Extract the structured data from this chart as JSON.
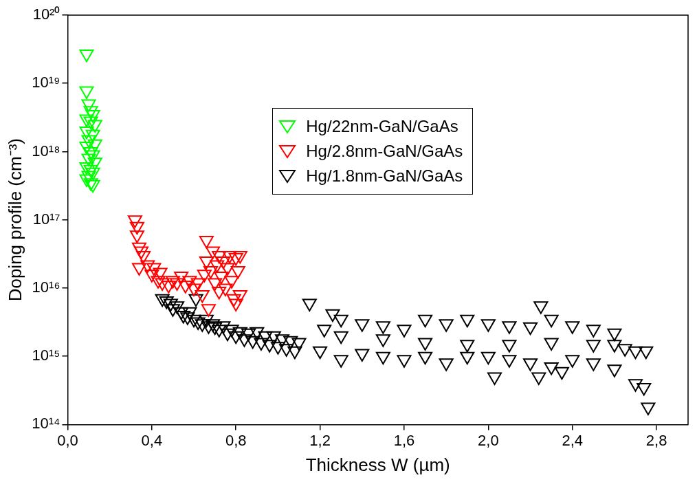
{
  "chart_data": {
    "type": "scatter",
    "xlabel": "Thickness W (µm)",
    "ylabel": "Doping profile (cm⁻³)",
    "xlim": [
      0,
      2.95
    ],
    "xticks": [
      {
        "value": 0,
        "label": "0,0"
      },
      {
        "value": 0.4,
        "label": "0,4"
      },
      {
        "value": 0.8,
        "label": "0,8"
      },
      {
        "value": 1.2,
        "label": "1,2"
      },
      {
        "value": 1.6,
        "label": "1,6"
      },
      {
        "value": 2.0,
        "label": "2,0"
      },
      {
        "value": 2.4,
        "label": "2,4"
      },
      {
        "value": 2.8,
        "label": "2,8"
      }
    ],
    "ylim": [
      100000000000000.0,
      1e+20
    ],
    "yticks": [
      {
        "value": 100000000000000.0,
        "label": "10¹⁴"
      },
      {
        "value": 1000000000000000.0,
        "label": "10¹⁵"
      },
      {
        "value": 1e+16,
        "label": "10¹⁶"
      },
      {
        "value": 1e+17,
        "label": "10¹⁷"
      },
      {
        "value": 1e+18,
        "label": "10¹⁸"
      },
      {
        "value": 1e+19,
        "label": "10¹⁹"
      },
      {
        "value": 1e+20,
        "label": "10²⁰"
      }
    ],
    "log": "y",
    "grid": false,
    "legend": "top right",
    "marker": "triangle",
    "series": [
      {
        "name": "Hg/22nm-GaN/GaAs",
        "color": "#00ff00",
        "x": [
          0.09,
          0.09,
          0.1,
          0.11,
          0.12,
          0.09,
          0.11,
          0.13,
          0.09,
          0.12,
          0.1,
          0.13,
          0.09,
          0.11,
          0.12,
          0.1,
          0.13,
          0.09,
          0.11,
          0.12,
          0.1,
          0.09,
          0.11,
          0.12
        ],
        "values": [
          2.7e+19,
          7.8e+18,
          5e+18,
          4e+18,
          3.5e+18,
          3e+18,
          2.8e+18,
          2.5e+18,
          2e+18,
          1.8e+18,
          1.5e+18,
          1.3e+18,
          1.2e+18,
          1e+18,
          9e+17,
          8e+17,
          7e+17,
          6e+17,
          5.5e+17,
          5e+17,
          4.5e+17,
          4e+17,
          3.5e+17,
          3.3e+17
        ]
      },
      {
        "name": "Hg/2.8nm-GaN/GaAs",
        "color": "#ff0000",
        "x": [
          0.32,
          0.33,
          0.33,
          0.34,
          0.35,
          0.34,
          0.36,
          0.38,
          0.4,
          0.41,
          0.43,
          0.44,
          0.45,
          0.48,
          0.5,
          0.52,
          0.54,
          0.56,
          0.58,
          0.6,
          0.62,
          0.64,
          0.65,
          0.66,
          0.66,
          0.67,
          0.68,
          0.69,
          0.7,
          0.71,
          0.72,
          0.72,
          0.73,
          0.74,
          0.75,
          0.76,
          0.77,
          0.78,
          0.79,
          0.8,
          0.81,
          0.82,
          0.82,
          0.8
        ],
        "values": [
          1e+17,
          8e+16,
          6e+16,
          4e+16,
          3.5e+16,
          2e+16,
          3e+16,
          2.2e+16,
          1.6e+16,
          2e+16,
          1.3e+16,
          1.7e+16,
          1.2e+16,
          1.1e+16,
          1.3e+16,
          1.2e+16,
          1.5e+16,
          1.1e+16,
          1.3e+16,
          1e+16,
          1.2e+16,
          8000000000000000.0,
          1.6e+16,
          5e+16,
          2.5e+16,
          5000000000000000.0,
          1.8e+16,
          3.5e+16,
          1.2e+16,
          2.2e+16,
          3e+16,
          9000000000000000.0,
          1.5e+16,
          2.5e+16,
          1e+16,
          2e+16,
          3e+16,
          1.3e+16,
          7000000000000000.0,
          2.8e+16,
          1.8e+16,
          8000000000000000.0,
          3e+16,
          6000000000000000.0
        ]
      },
      {
        "name": "Hg/1.8nm-GaN/GaAs",
        "color": "#000000",
        "x": [
          0.45,
          0.47,
          0.49,
          0.5,
          0.52,
          0.54,
          0.55,
          0.57,
          0.58,
          0.6,
          0.61,
          0.62,
          0.64,
          0.66,
          0.67,
          0.69,
          0.7,
          0.72,
          0.74,
          0.76,
          0.78,
          0.8,
          0.82,
          0.84,
          0.86,
          0.88,
          0.9,
          0.92,
          0.94,
          0.96,
          0.98,
          1.0,
          1.02,
          1.04,
          1.06,
          1.08,
          1.1,
          1.15,
          1.22,
          1.26,
          1.3,
          1.4,
          1.5,
          1.6,
          1.7,
          1.8,
          1.9,
          2.0,
          2.1,
          2.2,
          2.25,
          2.3,
          2.4,
          2.5,
          2.6,
          2.7,
          2.75,
          1.2,
          1.3,
          1.4,
          1.5,
          1.6,
          1.7,
          1.8,
          1.9,
          2.0,
          2.03,
          2.1,
          2.2,
          2.24,
          2.3,
          2.35,
          2.4,
          2.5,
          2.6,
          2.65,
          2.7,
          2.74,
          2.76,
          1.3,
          1.5,
          1.7,
          1.9,
          2.1,
          2.3,
          2.5,
          2.6
        ],
        "values": [
          7000000000000000.0,
          6500000000000000.0,
          6000000000000000.0,
          5000000000000000.0,
          5500000000000000.0,
          4500000000000000.0,
          4000000000000000.0,
          3800000000000000.0,
          4500000000000000.0,
          3500000000000000.0,
          7000000000000000.0,
          3200000000000000.0,
          3000000000000000.0,
          3500000000000000.0,
          2800000000000000.0,
          3000000000000000.0,
          2700000000000000.0,
          2500000000000000.0,
          2800000000000000.0,
          2200000000000000.0,
          2500000000000000.0,
          2000000000000000.0,
          2300000000000000.0,
          1800000000000000.0,
          2200000000000000.0,
          1700000000000000.0,
          2300000000000000.0,
          1600000000000000.0,
          2000000000000000.0,
          1500000000000000.0,
          2000000000000000.0,
          1400000000000000.0,
          1800000000000000.0,
          1300000000000000.0,
          1700000000000000.0,
          1200000000000000.0,
          1600000000000000.0,
          6000000000000000.0,
          2500000000000000.0,
          4200000000000000.0,
          3500000000000000.0,
          3000000000000000.0,
          2800000000000000.0,
          2500000000000000.0,
          3500000000000000.0,
          3000000000000000.0,
          3500000000000000.0,
          3000000000000000.0,
          2800000000000000.0,
          2700000000000000.0,
          5500000000000000.0,
          3500000000000000.0,
          2800000000000000.0,
          2500000000000000.0,
          2200000000000000.0,
          1200000000000000.0,
          1200000000000000.0,
          1200000000000000.0,
          900000000000000.0,
          1100000000000000.0,
          1000000000000000.0,
          900000000000000.0,
          1000000000000000.0,
          800000000000000.0,
          1000000000000000.0,
          1000000000000000.0,
          500000000000000.0,
          900000000000000.0,
          800000000000000.0,
          500000000000000.0,
          700000000000000.0,
          600000000000000.0,
          900000000000000.0,
          800000000000000.0,
          650000000000000.0,
          1300000000000000.0,
          400000000000000.0,
          350000000000000.0,
          180000000000000.0,
          2000000000000000.0,
          1800000000000000.0,
          1600000000000000.0,
          1500000000000000.0,
          1500000000000000.0,
          1600000000000000.0,
          1500000000000000.0,
          1500000000000000.0
        ]
      }
    ]
  }
}
